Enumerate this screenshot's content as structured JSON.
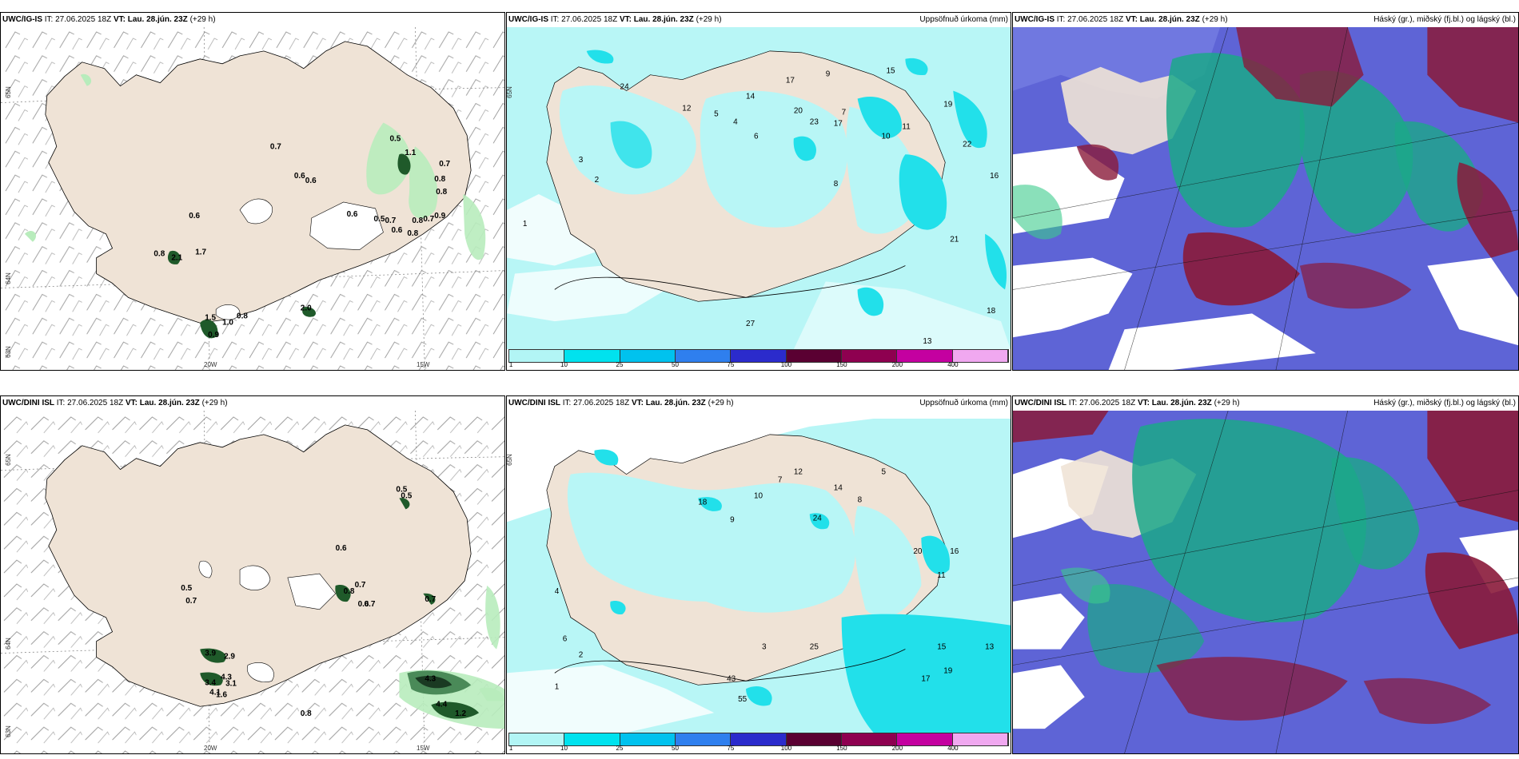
{
  "top_row": {
    "wind": {
      "model": "UWC/IG-IS",
      "it": "IT: 27.06.2025 18Z",
      "vt_label": "VT:",
      "vt": "Lau. 28.jún. 23Z",
      "lead": "(+29 h)",
      "lat_labels": [
        "65N",
        "64N",
        "63N"
      ],
      "lon_labels": [
        "20W",
        "15W"
      ],
      "values": [
        "0.7",
        "0.5",
        "1.1",
        "0.7",
        "0.6",
        "0.6",
        "0.8",
        "0.8",
        "0.6",
        "0.6",
        "0.5",
        "0.7",
        "0.8",
        "0.8",
        "0.9",
        "0.7",
        "0.6",
        "0.8",
        "2.1",
        "1.7",
        "1.5",
        "0.9",
        "1.0",
        "2.0",
        "0.8"
      ]
    },
    "precip": {
      "model": "UWC/IG-IS",
      "it": "IT: 27.06.2025 18Z",
      "vt_label": "VT:",
      "vt": "Lau. 28.jún. 23Z",
      "lead": "(+29 h)",
      "right_title": "Uppsöfnuð úrkoma (mm)",
      "lat_label": "65N",
      "values": [
        "14",
        "17",
        "9",
        "7",
        "15",
        "19",
        "20",
        "23",
        "17",
        "11",
        "12",
        "10",
        "6",
        "5",
        "4",
        "8",
        "3",
        "2",
        "24",
        "16",
        "22",
        "18",
        "13",
        "1",
        "21",
        "27"
      ]
    },
    "cloud": {
      "model": "UWC/IG-IS",
      "it": "IT: 27.06.2025 18Z",
      "vt_label": "VT:",
      "vt": "Lau. 28.jún. 23Z",
      "lead": "(+29 h)",
      "right_title": "Háský (gr.), miðský (fj.bl.) og lágský (bl.)"
    }
  },
  "bottom_row": {
    "wind": {
      "model": "UWC/DINI ISL",
      "it": "IT: 27.06.2025 18Z",
      "vt_label": "VT:",
      "vt": "Lau. 28.jún. 23Z",
      "lead": "(+29 h)",
      "lat_labels": [
        "65N",
        "64N",
        "63N"
      ],
      "lon_labels": [
        "20W",
        "15W"
      ],
      "values": [
        "0.5",
        "0.5",
        "0.6",
        "0.5",
        "0.7",
        "0.7",
        "0.8",
        "0.6",
        "0.7",
        "0.7",
        "3.9",
        "2.9",
        "4.3",
        "3.4",
        "3.1",
        "4.1",
        "1.6",
        "0.8",
        "4.3",
        "4.4",
        "1.2"
      ]
    },
    "precip": {
      "model": "UWC/DINI ISL",
      "it": "IT: 27.06.2025 18Z",
      "vt_label": "VT:",
      "vt": "Lau. 28.jún. 23Z",
      "lead": "(+29 h)",
      "right_title": "Uppsöfnuð úrkoma (mm)",
      "lat_label": "65N",
      "values": [
        "12",
        "14",
        "7",
        "8",
        "5",
        "18",
        "24",
        "9",
        "10",
        "11",
        "16",
        "20",
        "15",
        "19",
        "17",
        "13",
        "25",
        "3",
        "6",
        "2",
        "4",
        "1",
        "43",
        "55"
      ]
    },
    "cloud": {
      "model": "UWC/DINI ISL",
      "it": "IT: 27.06.2025 18Z",
      "vt_label": "VT:",
      "vt": "Lau. 28.jún. 23Z",
      "lead": "(+29 h)",
      "right_title": "Háský (gr.), miðský (fj.bl.) og lágský (bl.)"
    }
  },
  "legend": {
    "colors": [
      "#b2f5f5",
      "#00e2ee",
      "#00c2ee",
      "#2f7fee",
      "#2b2bcc",
      "#5a0032",
      "#8e0050",
      "#c400a0",
      "#f0a8f0"
    ],
    "ticks": [
      "1",
      "10",
      "25",
      "50",
      "75",
      "100",
      "150",
      "200",
      "400"
    ]
  },
  "colors": {
    "land": "#efe3d6",
    "precip_light": "#b8f6f6",
    "precip_mid": "#22e0ea",
    "wind_light_green": "#b8ecbc",
    "wind_dark_green": "#1f5a2a",
    "cloud_high": "#8a1a3a",
    "cloud_mid": "#1ba888",
    "cloud_low": "#5e64d6"
  }
}
